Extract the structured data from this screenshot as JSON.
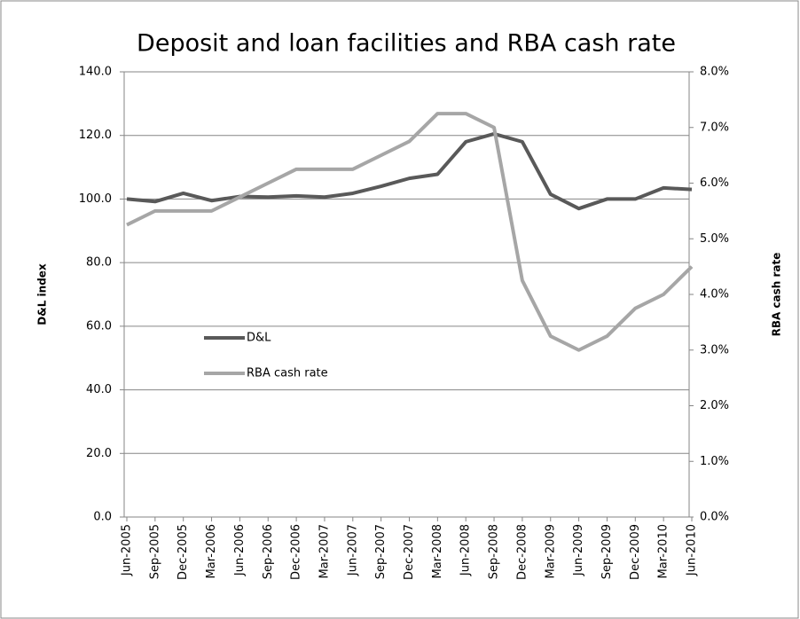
{
  "chart_data": {
    "type": "line",
    "title": "Deposit and loan facilities and RBA cash rate",
    "y_label": "D&L index",
    "y2_label": "RBA cash rate",
    "categories": [
      "Jun-2005",
      "Sep-2005",
      "Dec-2005",
      "Mar-2006",
      "Jun-2006",
      "Sep-2006",
      "Dec-2006",
      "Mar-2007",
      "Jun-2007",
      "Sep-2007",
      "Dec-2007",
      "Mar-2008",
      "Jun-2008",
      "Sep-2008",
      "Dec-2008",
      "Mar-2009",
      "Jun-2009",
      "Sep-2009",
      "Dec-2009",
      "Mar-2010",
      "Jun-2010"
    ],
    "series": [
      {
        "name": "D&L",
        "color": "#595959",
        "axis": "y",
        "values": [
          100,
          99.2,
          101.8,
          99.5,
          100.8,
          100.6,
          101,
          100.6,
          101.8,
          104,
          106.5,
          107.8,
          118,
          120.5,
          118,
          101.5,
          97,
          100,
          100,
          103.5,
          103
        ]
      },
      {
        "name": "RBA cash rate",
        "color": "#a6a6a6",
        "axis": "y2",
        "values": [
          5.25,
          5.5,
          5.5,
          5.5,
          5.75,
          6.0,
          6.25,
          6.25,
          6.25,
          6.5,
          6.75,
          7.25,
          7.25,
          7.0,
          4.25,
          3.25,
          3.0,
          3.25,
          3.75,
          4.0,
          4.5
        ]
      }
    ],
    "ylim": [
      0,
      140
    ],
    "yticks": [
      {
        "value": 0,
        "label": "0.0"
      },
      {
        "value": 20,
        "label": "20.0"
      },
      {
        "value": 40,
        "label": "40.0"
      },
      {
        "value": 60,
        "label": "60.0"
      },
      {
        "value": 80,
        "label": "80.0"
      },
      {
        "value": 100,
        "label": "100.0"
      },
      {
        "value": 120,
        "label": "120.0"
      },
      {
        "value": 140,
        "label": "140.0"
      }
    ],
    "y2lim": [
      0,
      8
    ],
    "y2ticks": [
      {
        "value": 0,
        "label": "0.0%"
      },
      {
        "value": 1,
        "label": "1.0%"
      },
      {
        "value": 2,
        "label": "2.0%"
      },
      {
        "value": 3,
        "label": "3.0%"
      },
      {
        "value": 4,
        "label": "4.0%"
      },
      {
        "value": 5,
        "label": "5.0%"
      },
      {
        "value": 6,
        "label": "6.0%"
      },
      {
        "value": 7,
        "label": "7.0%"
      },
      {
        "value": 8,
        "label": "8.0%"
      }
    ],
    "grid": true
  }
}
